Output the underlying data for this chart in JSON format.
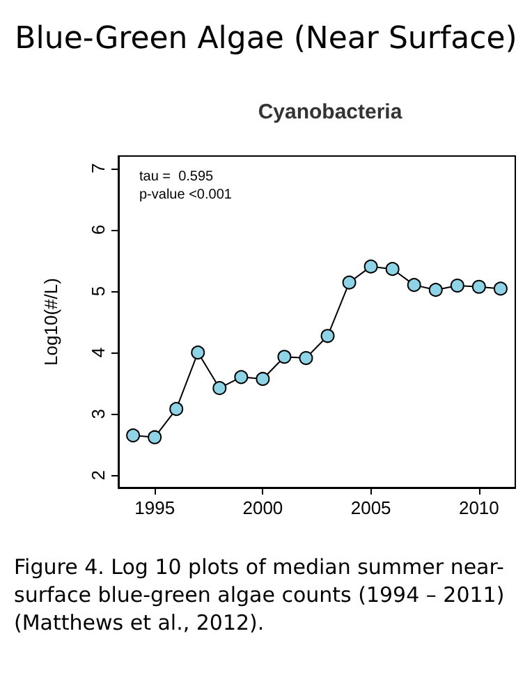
{
  "chart_data": {
    "type": "line",
    "title": "Blue-Green Algae (Near Surface)",
    "subtitle": "Cyanobacteria",
    "ylabel": "Log10(#/L)",
    "x": [
      1994,
      1995,
      1996,
      1997,
      1998,
      1999,
      2000,
      2001,
      2002,
      2003,
      2004,
      2005,
      2006,
      2007,
      2008,
      2009,
      2010,
      2011
    ],
    "series": [
      {
        "color": "#8fd3e6",
        "values": [
          2.65,
          2.62,
          3.08,
          4.0,
          3.42,
          3.6,
          3.57,
          3.93,
          3.91,
          4.27,
          5.14,
          5.4,
          5.36,
          5.1,
          5.02,
          5.09,
          5.07,
          5.04
        ]
      }
    ],
    "xlim": [
      1993.32,
      2011.68
    ],
    "xticks": [
      1995,
      2000,
      2005,
      2010
    ],
    "ylim": [
      1.8,
      7.2
    ],
    "yticks": [
      2,
      3,
      4,
      5,
      6,
      7
    ],
    "grid": false,
    "marker": "circle",
    "line_style": "solid",
    "annotations": [
      "tau =  0.595",
      "p-value <0.001",
      "Figure 4. Log 10 plots of median summer near-surface blue-green algae counts (1994 – 2011) (Matthews et al., 2012)."
    ]
  }
}
